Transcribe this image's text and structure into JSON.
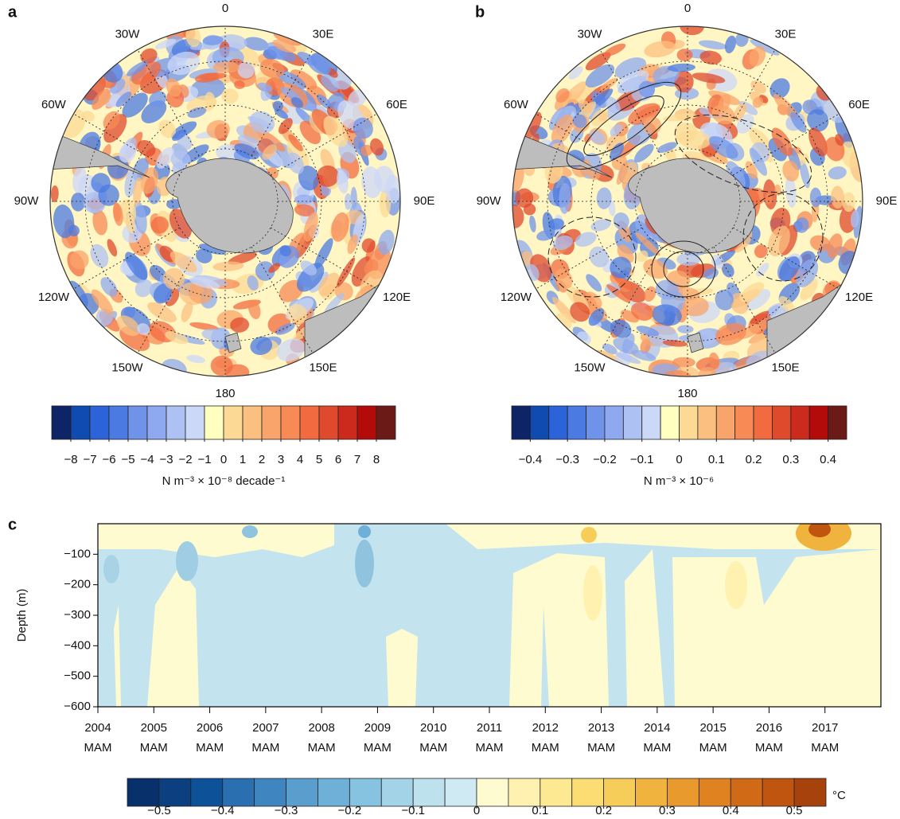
{
  "chart_data": [
    {
      "type": "map",
      "panel_label": "a",
      "longitude_labels": [
        "0",
        "30E",
        "60E",
        "90E",
        "120E",
        "150E",
        "180",
        "150W",
        "120W",
        "90W",
        "60W",
        "30W"
      ],
      "colorbar": {
        "colors": [
          "#0d2466",
          "#0f4bb0",
          "#2c63d8",
          "#4b7be2",
          "#6f93e9",
          "#8ea9ef",
          "#adc1f3",
          "#ccd8f8",
          "#ffffbf",
          "#fcd995",
          "#fbc080",
          "#f9a46a",
          "#f78a55",
          "#f26b40",
          "#e04a2c",
          "#cc2a1c",
          "#b30a0a",
          "#6b1a18"
        ],
        "lim": [
          -9,
          9
        ],
        "ticks": [
          {
            "value": -8,
            "label": "−8"
          },
          {
            "value": -7,
            "label": "−7"
          },
          {
            "value": -6,
            "label": "−6"
          },
          {
            "value": -5,
            "label": "−5"
          },
          {
            "value": -4,
            "label": "−4"
          },
          {
            "value": -3,
            "label": "−3"
          },
          {
            "value": -2,
            "label": "−2"
          },
          {
            "value": -1,
            "label": "−1"
          },
          0,
          1,
          2,
          3,
          4,
          5,
          6,
          7,
          8
        ],
        "unit_label": "N m⁻³ × 10⁻⁸ decade⁻¹"
      }
    },
    {
      "type": "map",
      "panel_label": "b",
      "longitude_labels": [
        "0",
        "30E",
        "60E",
        "90E",
        "120E",
        "150E",
        "180",
        "150W",
        "120W",
        "90W",
        "60W",
        "30W"
      ],
      "colorbar": {
        "colors": [
          "#0d2466",
          "#0f4bb0",
          "#2c63d8",
          "#4b7be2",
          "#6f93e9",
          "#8ea9ef",
          "#adc1f3",
          "#ccd8f8",
          "#ffffbf",
          "#fcd995",
          "#fbc080",
          "#f9a46a",
          "#f78a55",
          "#f26b40",
          "#e04a2c",
          "#cc2a1c",
          "#b30a0a",
          "#6b1a18"
        ],
        "lim": [
          -0.45,
          0.45
        ],
        "ticks": [
          {
            "value": -0.4,
            "label": "−0.4"
          },
          {
            "value": -0.3,
            "label": "−0.3"
          },
          {
            "value": -0.2,
            "label": "−0.2"
          },
          {
            "value": -0.1,
            "label": "−0.1"
          },
          0,
          0.1,
          0.2,
          0.3,
          0.4
        ],
        "unit_label": "N m⁻³ × 10⁻⁶"
      }
    },
    {
      "type": "heatmap",
      "panel_label": "c",
      "ylabel": "Depth (m)",
      "xlim": [
        2004,
        2018
      ],
      "xticks": [
        2004,
        2005,
        2006,
        2007,
        2008,
        2009,
        2010,
        2011,
        2012,
        2013,
        2014,
        2015,
        2016,
        2017
      ],
      "xtick_sublabel": "MAM",
      "ylim": [
        -600,
        0
      ],
      "yticks": [
        {
          "value": -100,
          "label": "−100"
        },
        {
          "value": -200,
          "label": "−200"
        },
        {
          "value": -300,
          "label": "−300"
        },
        {
          "value": -400,
          "label": "−400"
        },
        {
          "value": -500,
          "label": "−500"
        },
        {
          "value": -600,
          "label": "−600"
        }
      ],
      "colorbar": {
        "colors": [
          "#08306b",
          "#0b3f80",
          "#0d5199",
          "#2a6fb0",
          "#3f86c0",
          "#5a9ecd",
          "#6fb0d8",
          "#86c3e0",
          "#a2d3e7",
          "#bde2ee",
          "#cfeaf3",
          "#fffbd0",
          "#fff2b0",
          "#fde992",
          "#fbdd74",
          "#f7cd5a",
          "#f0b43e",
          "#e99a2c",
          "#e0821f",
          "#d16a16",
          "#c05510",
          "#a8420d"
        ],
        "lim": [
          -0.55,
          0.55
        ],
        "ticks": [
          {
            "value": -0.5,
            "label": "−0.5"
          },
          {
            "value": -0.4,
            "label": "−0.4"
          },
          {
            "value": -0.3,
            "label": "−0.3"
          },
          {
            "value": -0.2,
            "label": "−0.2"
          },
          {
            "value": -0.1,
            "label": "−0.1"
          },
          0,
          0.1,
          0.2,
          0.3,
          0.4,
          0.5
        ],
        "unit_label": "°C"
      }
    }
  ]
}
